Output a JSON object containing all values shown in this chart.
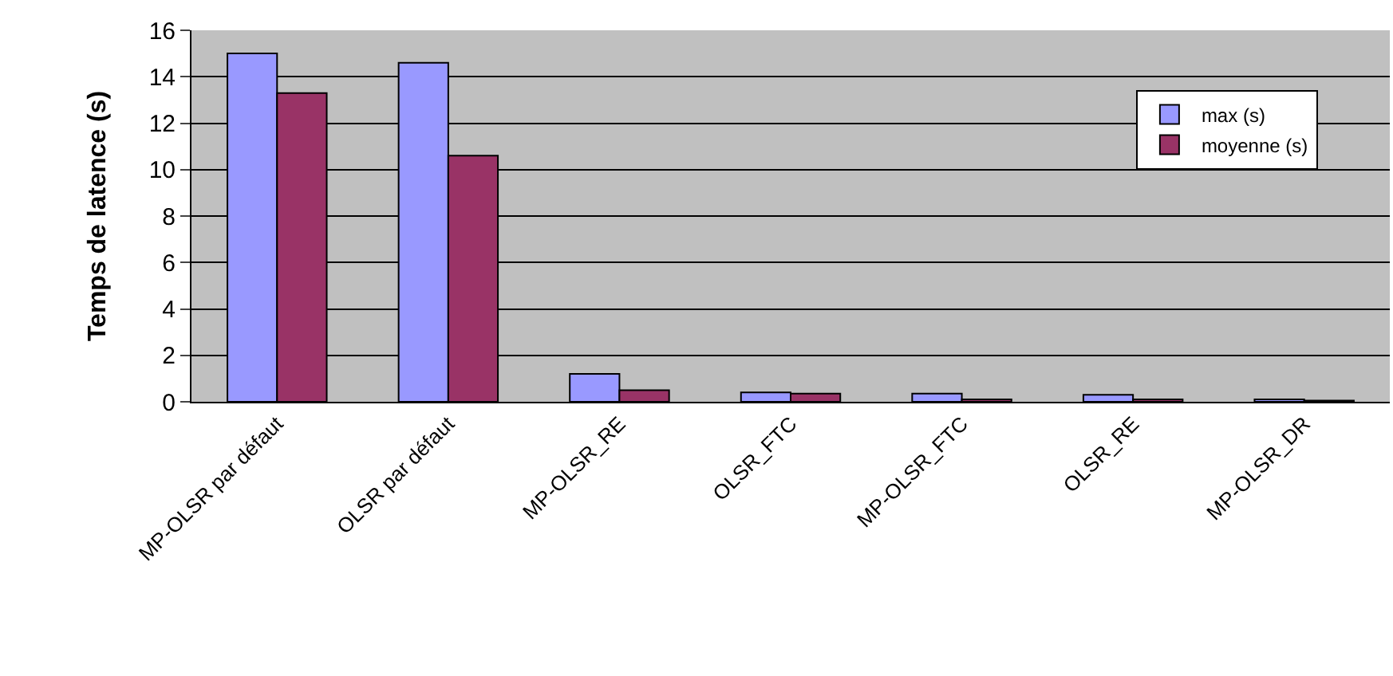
{
  "chart_data": {
    "type": "bar",
    "ylabel": "Temps de latence (s)",
    "categories": [
      "MP-OLSR par défaut",
      "OLSR par défaut",
      "MP-OLSR_RE",
      "OLSR_FTC",
      "MP-OLSR_FTC",
      "OLSR_RE",
      "MP-OLSR_DR"
    ],
    "series": [
      {
        "name": "max (s)",
        "color": "#9999ff",
        "values": [
          15.0,
          14.6,
          1.2,
          0.4,
          0.35,
          0.3,
          0.1
        ]
      },
      {
        "name": "moyenne (s)",
        "color": "#993366",
        "values": [
          13.3,
          10.6,
          0.5,
          0.35,
          0.1,
          0.1,
          0.05
        ]
      }
    ],
    "ylim": [
      0,
      16
    ],
    "yticks": [
      0,
      2,
      4,
      6,
      8,
      10,
      12,
      14,
      16
    ],
    "grid": "y",
    "legend": "top right"
  }
}
